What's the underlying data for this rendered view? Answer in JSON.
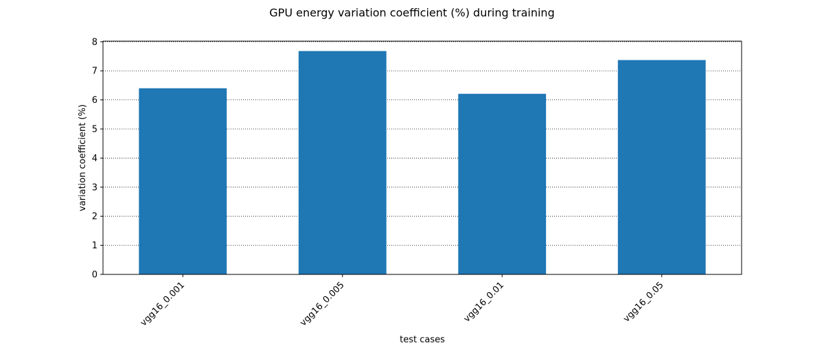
{
  "chart_data": {
    "type": "bar",
    "title": "GPU energy variation coefficient (%) during training",
    "xlabel": "test cases",
    "ylabel": "variation coefficient (%)",
    "categories": [
      "vgg16_0.001",
      "vgg16_0.005",
      "vgg16_0.01",
      "vgg16_0.05"
    ],
    "values": [
      6.4,
      7.68,
      6.21,
      7.37
    ],
    "ylim": [
      0,
      8.02
    ],
    "yticks": [
      0,
      1,
      2,
      3,
      4,
      5,
      6,
      7,
      8
    ],
    "grid": true,
    "grid_axis": "y",
    "grid_style": "dotted",
    "bar_color": "#1f77b4",
    "legend": "none"
  }
}
